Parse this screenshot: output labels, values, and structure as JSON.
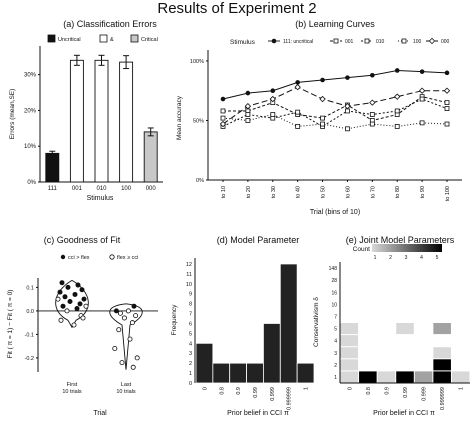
{
  "figure": {
    "title": "Results of Experiment 2"
  },
  "chart_data": [
    {
      "id": "a",
      "type": "bar",
      "title": "(a)  Classification Errors",
      "xlabel": "Stimulus",
      "ylabel": "Errors (mean,SE)",
      "categories": [
        "111",
        "001",
        "010",
        "100",
        "000"
      ],
      "values": [
        8,
        34,
        34,
        33.5,
        14
      ],
      "errors": [
        0.6,
        1.4,
        1.4,
        1.8,
        1.1
      ],
      "kinds": [
        "Uncritical",
        "&",
        "&",
        "&",
        "Critical"
      ],
      "ylim": [
        0,
        38
      ],
      "yticks": [
        "0%",
        "10%",
        "20%",
        "30%"
      ],
      "ytick_values": [
        0,
        10,
        20,
        30
      ],
      "legend": [
        "Uncritical",
        "&",
        "Critical"
      ],
      "colors": {
        "Uncritical": "#111111",
        "&": "#ffffff",
        "Critical": "#c8c8c8"
      }
    },
    {
      "id": "b",
      "type": "line",
      "title": "(b)  Learning Curves",
      "xlabel": "Trial (bins of 10)",
      "ylabel": "Mean accuracy",
      "legend_title": "Stimulus",
      "categories": [
        "to 10",
        "to 20",
        "to 30",
        "to 40",
        "to 50",
        "to 60",
        "to 70",
        "to 80",
        "to 90",
        "to 100"
      ],
      "yticks": [
        "0%",
        "50%",
        "100%"
      ],
      "ytick_values": [
        0,
        50,
        100
      ],
      "ylim": [
        0,
        105
      ],
      "series": [
        {
          "name": "111: uncritical",
          "values": [
            68,
            73,
            75,
            82,
            84,
            86,
            88,
            92,
            91,
            90
          ],
          "dash": "",
          "marker": "filled-circle"
        },
        {
          "name": "001",
          "values": [
            58,
            58,
            65,
            55,
            52,
            63,
            50,
            55,
            70,
            65
          ],
          "dash": "3,2",
          "marker": "open-square"
        },
        {
          "name": "010",
          "values": [
            45,
            55,
            52,
            57,
            45,
            58,
            55,
            58,
            68,
            60
          ],
          "dash": "2,2",
          "marker": "open-square"
        },
        {
          "name": "100",
          "values": [
            52,
            50,
            55,
            45,
            47,
            43,
            47,
            45,
            48,
            47
          ],
          "dash": "1,2",
          "marker": "open-square"
        },
        {
          "name": "000",
          "values": [
            47,
            62,
            68,
            78,
            68,
            62,
            65,
            70,
            75,
            75
          ],
          "dash": "6,3",
          "marker": "open-diamond"
        }
      ]
    },
    {
      "id": "c",
      "type": "scatter",
      "title": "(c)  Goodness of Fit",
      "xlabel": "Trial",
      "ylabel": "Fit ( π = 1) − Fit ( π = 0)",
      "categories": [
        "First\n10 trials",
        "Last\n10 trials"
      ],
      "ytick_values": [
        -0.2,
        -0.1,
        0,
        0.1
      ],
      "yticks": [
        "-0.2",
        "-0.1",
        "0.0",
        "0.1"
      ],
      "ylim": [
        -0.26,
        0.14
      ],
      "legend": [
        "cci > flex",
        "flex ≥ cci"
      ],
      "points_first": [
        {
          "y": 0.12,
          "g": 0
        },
        {
          "y": 0.11,
          "g": 0
        },
        {
          "y": 0.1,
          "g": 0
        },
        {
          "y": 0.09,
          "g": 0
        },
        {
          "y": 0.08,
          "g": 0
        },
        {
          "y": 0.07,
          "g": 0
        },
        {
          "y": 0.06,
          "g": 0
        },
        {
          "y": 0.05,
          "g": 0
        },
        {
          "y": 0.04,
          "g": 0
        },
        {
          "y": 0.03,
          "g": 0
        },
        {
          "y": 0.02,
          "g": 0
        },
        {
          "y": 0.01,
          "g": 0
        },
        {
          "y": 0.05,
          "g": 1
        },
        {
          "y": 0.02,
          "g": 1
        },
        {
          "y": 0.0,
          "g": 1
        },
        {
          "y": -0.02,
          "g": 1
        },
        {
          "y": -0.04,
          "g": 1
        },
        {
          "y": -0.06,
          "g": 1
        },
        {
          "y": -0.03,
          "g": 1
        }
      ],
      "points_last": [
        {
          "y": 0.02,
          "g": 0
        },
        {
          "y": 0.0,
          "g": 0
        },
        {
          "y": 0.0,
          "g": 1
        },
        {
          "y": -0.01,
          "g": 1
        },
        {
          "y": -0.02,
          "g": 1
        },
        {
          "y": -0.03,
          "g": 1
        },
        {
          "y": -0.05,
          "g": 1
        },
        {
          "y": -0.08,
          "g": 1
        },
        {
          "y": -0.12,
          "g": 1
        },
        {
          "y": -0.16,
          "g": 1
        },
        {
          "y": -0.2,
          "g": 1
        },
        {
          "y": -0.22,
          "g": 1
        },
        {
          "y": -0.24,
          "g": 1
        }
      ]
    },
    {
      "id": "d",
      "type": "bar",
      "title": "(d)  Model Parameter",
      "xlabel": "Prior belief in CCI π",
      "ylabel": "Frequency",
      "categories": [
        "0",
        "0.8",
        "0.9",
        "0.99",
        "0.999",
        "0.999999",
        "1"
      ],
      "values": [
        4,
        2,
        2,
        2,
        6,
        12,
        2
      ],
      "yticks": [
        "0",
        "1",
        "2",
        "3",
        "4",
        "5",
        "6",
        "7",
        "8",
        "9",
        "10",
        "11",
        "12"
      ],
      "ytick_values": [
        0,
        1,
        2,
        3,
        4,
        5,
        6,
        7,
        8,
        9,
        10,
        11,
        12
      ],
      "ylim": [
        0,
        12.6
      ]
    },
    {
      "id": "e",
      "type": "heatmap",
      "title": "(e)  Joint Model Parameters",
      "xlabel": "Prior belief in CCI π",
      "ylabel": "Conservativism δ",
      "legend_title": "Count",
      "legend_ticks": [
        "1",
        "2",
        "3",
        "4",
        "5"
      ],
      "x_categories": [
        "0",
        "0.8",
        "0.9",
        "0.99",
        "0.999",
        "0.999999",
        "1"
      ],
      "y_categories": [
        "1",
        "2",
        "3",
        "4",
        "5",
        "7",
        "10",
        "16",
        "28",
        "148"
      ],
      "cells": [
        {
          "x": 0,
          "y": 0,
          "v": 1
        },
        {
          "x": 1,
          "y": 0,
          "v": 5
        },
        {
          "x": 2,
          "y": 0,
          "v": 1
        },
        {
          "x": 3,
          "y": 0,
          "v": 5
        },
        {
          "x": 4,
          "y": 0,
          "v": 2
        },
        {
          "x": 5,
          "y": 0,
          "v": 5
        },
        {
          "x": 6,
          "y": 0,
          "v": 1
        },
        {
          "x": 0,
          "y": 1,
          "v": 1
        },
        {
          "x": 5,
          "y": 1,
          "v": 5
        },
        {
          "x": 0,
          "y": 2,
          "v": 1
        },
        {
          "x": 5,
          "y": 2,
          "v": 1
        },
        {
          "x": 0,
          "y": 3,
          "v": 1
        },
        {
          "x": 0,
          "y": 4,
          "v": 1
        },
        {
          "x": 3,
          "y": 4,
          "v": 1
        },
        {
          "x": 5,
          "y": 4,
          "v": 2
        }
      ]
    }
  ]
}
